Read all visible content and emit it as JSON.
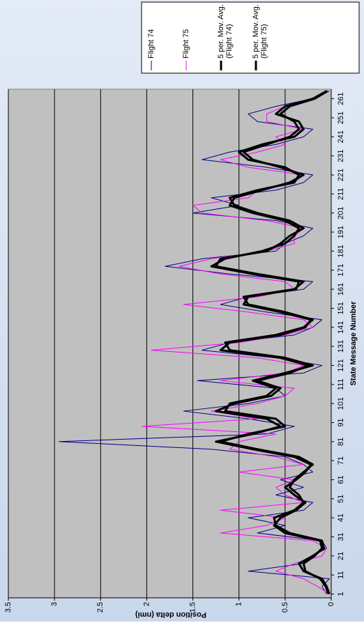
{
  "chart_data": {
    "type": "line",
    "x_label": "State Message Number",
    "y_label": "Position delta (nmi)",
    "x": [
      1,
      5,
      9,
      13,
      17,
      21,
      25,
      29,
      33,
      37,
      41,
      45,
      49,
      53,
      57,
      61,
      65,
      69,
      73,
      77,
      81,
      85,
      89,
      93,
      97,
      101,
      105,
      109,
      113,
      117,
      121,
      125,
      129,
      133,
      137,
      141,
      145,
      149,
      153,
      157,
      161,
      165,
      169,
      173,
      177,
      181,
      185,
      189,
      193,
      197,
      201,
      205,
      209,
      213,
      217,
      221,
      225,
      229,
      233,
      237,
      241,
      245,
      249,
      253,
      257,
      261,
      265
    ],
    "xlim": [
      -1,
      266
    ],
    "xticks": [
      1,
      11,
      21,
      31,
      41,
      51,
      61,
      71,
      81,
      91,
      101,
      111,
      121,
      131,
      141,
      151,
      161,
      171,
      181,
      191,
      201,
      211,
      221,
      231,
      241,
      251,
      261
    ],
    "ylim": [
      0,
      3.5
    ],
    "yticks": [
      0,
      0.5,
      1,
      1.5,
      2,
      2.5,
      3,
      3.5
    ],
    "grid": true,
    "legend": "right",
    "series": [
      {
        "name": "Flight 74",
        "color": "#000080",
        "line_width": 1,
        "values": [
          0.05,
          0.1,
          0.02,
          0.9,
          0.3,
          0.2,
          0.05,
          0.1,
          0.8,
          0.5,
          0.9,
          0.3,
          0.2,
          0.6,
          0.3,
          0.55,
          0.2,
          0.3,
          0.5,
          1.3,
          2.95,
          0.7,
          0.4,
          0.9,
          1.6,
          0.9,
          0.5,
          0.6,
          1.45,
          0.3,
          0.1,
          0.6,
          1.4,
          1.1,
          0.4,
          0.2,
          0.1,
          0.7,
          1.2,
          0.9,
          0.3,
          0.2,
          1.1,
          1.8,
          1.4,
          0.6,
          0.5,
          0.3,
          0.2,
          0.6,
          1.5,
          1.0,
          1.3,
          0.6,
          0.3,
          0.2,
          0.7,
          1.4,
          1.1,
          0.6,
          0.3,
          0.2,
          0.8,
          0.9,
          0.6,
          0.2,
          0.02
        ]
      },
      {
        "name": "Flight 75",
        "color": "#ff00ff",
        "line_width": 1,
        "values": [
          0.02,
          0.15,
          0.3,
          0.6,
          0.4,
          0.1,
          0.05,
          0.2,
          1.2,
          0.7,
          0.5,
          1.2,
          0.3,
          0.5,
          0.6,
          0.4,
          1.0,
          0.3,
          0.6,
          1.1,
          1.0,
          0.6,
          2.05,
          0.8,
          1.3,
          0.8,
          0.5,
          0.4,
          1.2,
          0.5,
          0.3,
          0.8,
          1.95,
          1.0,
          0.5,
          0.2,
          0.3,
          0.9,
          1.6,
          0.8,
          0.4,
          0.5,
          1.2,
          1.65,
          1.3,
          0.7,
          0.4,
          0.4,
          0.3,
          0.7,
          1.4,
          1.5,
          0.9,
          0.8,
          0.4,
          0.3,
          0.9,
          1.2,
          0.8,
          0.5,
          0.6,
          0.3,
          0.7,
          0.7,
          0.5,
          0.2,
          0.03
        ]
      },
      {
        "name": "5 per. Mov. Avg. (Flight 74)",
        "color": "#000000",
        "line_width": 3,
        "values": [
          0.02,
          0.05,
          0.1,
          0.3,
          0.35,
          0.2,
          0.08,
          0.1,
          0.45,
          0.6,
          0.62,
          0.4,
          0.3,
          0.35,
          0.45,
          0.4,
          0.3,
          0.2,
          0.35,
          0.8,
          1.2,
          0.9,
          0.5,
          0.6,
          1.15,
          1.1,
          0.7,
          0.6,
          0.85,
          0.5,
          0.2,
          0.5,
          1.1,
          1.15,
          0.6,
          0.3,
          0.2,
          0.5,
          0.9,
          0.95,
          0.4,
          0.3,
          0.8,
          1.25,
          1.2,
          0.7,
          0.55,
          0.45,
          0.3,
          0.45,
          0.8,
          1.05,
          1.1,
          0.8,
          0.4,
          0.35,
          0.5,
          0.9,
          1.0,
          0.75,
          0.4,
          0.3,
          0.35,
          0.6,
          0.5,
          0.2,
          0.05
        ]
      },
      {
        "name": "5 per. Mov. Avg. (Flight 75)",
        "color": "#000000",
        "line_width": 3,
        "values": [
          0.03,
          0.06,
          0.12,
          0.28,
          0.3,
          0.18,
          0.1,
          0.12,
          0.5,
          0.62,
          0.55,
          0.38,
          0.28,
          0.4,
          0.5,
          0.38,
          0.28,
          0.22,
          0.4,
          0.85,
          1.25,
          0.85,
          0.55,
          0.7,
          1.25,
          1.05,
          0.65,
          0.55,
          0.8,
          0.45,
          0.25,
          0.55,
          1.2,
          1.1,
          0.55,
          0.28,
          0.22,
          0.55,
          0.95,
          0.9,
          0.38,
          0.35,
          0.85,
          1.3,
          1.15,
          0.75,
          0.5,
          0.4,
          0.35,
          0.5,
          0.85,
          1.1,
          1.05,
          0.75,
          0.45,
          0.3,
          0.55,
          0.85,
          0.95,
          0.7,
          0.45,
          0.35,
          0.4,
          0.55,
          0.45,
          0.18,
          0.04
        ]
      }
    ]
  }
}
